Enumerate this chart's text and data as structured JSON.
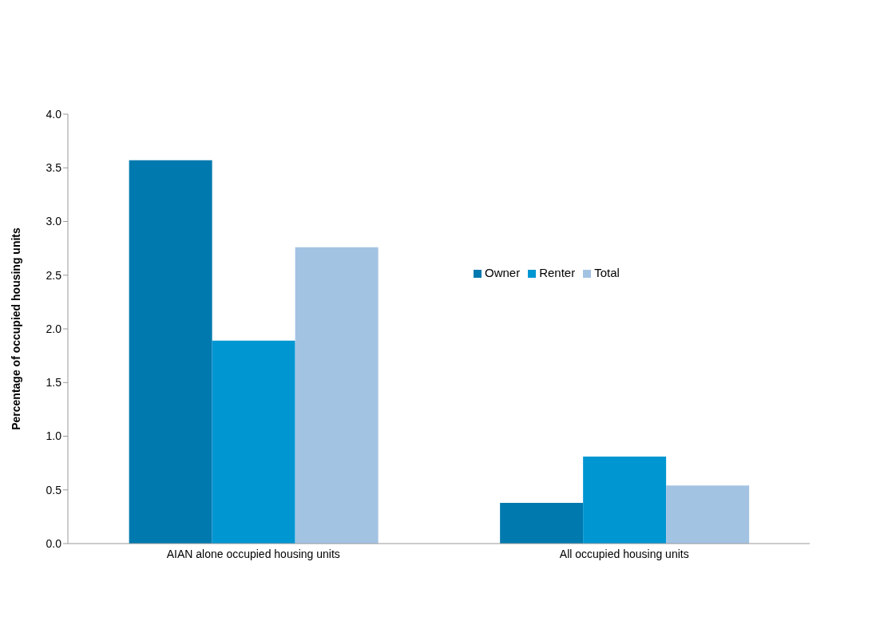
{
  "chart_data": {
    "type": "bar",
    "ylabel": "Percentage of occupied housing units",
    "categories": [
      "AIAN alone occupied housing units",
      "All occupied housing units"
    ],
    "series": [
      {
        "name": "Owner",
        "color": "#0079ae",
        "values": [
          3.57,
          0.38
        ]
      },
      {
        "name": "Renter",
        "color": "#0096d2",
        "values": [
          1.89,
          0.81
        ]
      },
      {
        "name": "Total",
        "color": "#a3c3e3",
        "values": [
          2.76,
          0.54
        ]
      }
    ],
    "ylim": [
      0,
      4
    ],
    "yticks": [
      {
        "value": 0,
        "label": "0.0"
      },
      {
        "value": 0.5,
        "label": "0.5"
      },
      {
        "value": 1,
        "label": "1.0"
      },
      {
        "value": 1.5,
        "label": "1.5"
      },
      {
        "value": 2,
        "label": "2.0"
      },
      {
        "value": 2.5,
        "label": "2.5"
      },
      {
        "value": 3,
        "label": "3.0"
      },
      {
        "value": 3.5,
        "label": "3.5"
      },
      {
        "value": 4,
        "label": "4.0"
      }
    ],
    "grid": false,
    "legend": "top right"
  }
}
